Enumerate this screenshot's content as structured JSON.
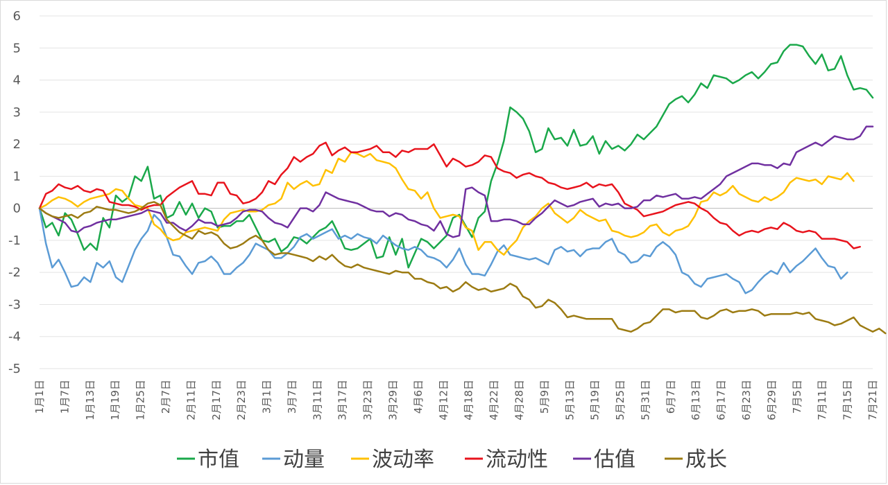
{
  "chart_data": {
    "type": "line",
    "title": "",
    "xlabel": "",
    "ylabel": "",
    "ylim": [
      -5,
      6
    ],
    "yticks": [
      "6",
      "5",
      "4",
      "3",
      "2",
      "1",
      "0",
      "-1",
      "-2",
      "-3",
      "-4",
      "-5"
    ],
    "grid": "horizontal",
    "legend_position": "bottom",
    "x_tick_labels": [
      "1月1日",
      "1月7日",
      "1月13日",
      "1月19日",
      "1月25日",
      "2月7日",
      "2月11日",
      "2月17日",
      "2月23日",
      "3月1日",
      "3月7日",
      "3月11日",
      "3月17日",
      "3月23日",
      "3月29日",
      "4月6日",
      "4月12日",
      "4月18日",
      "4月22日",
      "4月28日",
      "5月9日",
      "5月13日",
      "5月19日",
      "5月25日",
      "5月31日",
      "6月7日",
      "6月13日",
      "6月17日",
      "6月23日",
      "6月29日",
      "7月5日",
      "7月11日",
      "7月15日",
      "7月21日"
    ],
    "series": [
      {
        "name": "市值",
        "color": "#1aa84a",
        "values": [
          0,
          -0.6,
          -0.45,
          -0.85,
          -0.15,
          -0.35,
          -0.8,
          -1.3,
          -1.1,
          -1.3,
          -0.3,
          -0.6,
          0.4,
          0.2,
          0.35,
          1.0,
          0.85,
          1.3,
          0.3,
          0.4,
          -0.3,
          -0.2,
          0.2,
          -0.2,
          0.15,
          -0.3,
          0,
          -0.1,
          -0.6,
          -0.55,
          -0.55,
          -0.4,
          -0.4,
          -0.2,
          -0.6,
          -1.0,
          -1.05,
          -0.95,
          -1.35,
          -1.2,
          -0.9,
          -0.95,
          -1.1,
          -0.9,
          -0.7,
          -0.6,
          -0.4,
          -0.8,
          -1.25,
          -1.3,
          -1.25,
          -1.1,
          -0.95,
          -1.55,
          -1.5,
          -0.9,
          -1.45,
          -0.95,
          -1.85,
          -1.4,
          -0.95,
          -1.05,
          -1.25,
          -1.05,
          -0.85,
          -0.3,
          -0.2,
          -0.55,
          -0.9,
          -0.3,
          -0.1,
          0.85,
          1.4,
          2.1,
          3.15,
          3.0,
          2.8,
          2.4,
          1.75,
          1.85,
          2.5,
          2.15,
          2.2,
          1.95,
          2.45,
          1.95,
          2.0,
          2.25,
          1.7,
          2.1,
          1.85,
          1.95,
          1.8,
          2.0,
          2.3,
          2.15,
          2.35,
          2.55,
          2.9,
          3.25,
          3.4,
          3.5,
          3.3,
          3.55,
          3.9,
          3.75,
          4.15,
          4.1,
          4.05,
          3.9,
          4.0,
          4.15,
          4.25,
          4.05,
          4.25,
          4.5,
          4.55,
          4.9,
          5.1,
          5.1,
          5.05,
          4.75,
          4.5,
          4.8,
          4.3,
          4.35,
          4.75,
          4.15,
          3.7,
          3.75,
          3.7,
          3.45
        ]
      },
      {
        "name": "动量",
        "color": "#5b9bd5",
        "values": [
          0,
          -1.1,
          -1.85,
          -1.6,
          -2.0,
          -2.45,
          -2.4,
          -2.15,
          -2.3,
          -1.7,
          -1.85,
          -1.65,
          -2.15,
          -2.3,
          -1.8,
          -1.3,
          -0.95,
          -0.7,
          -0.2,
          -0.4,
          -0.9,
          -1.45,
          -1.5,
          -1.8,
          -2.05,
          -1.7,
          -1.65,
          -1.5,
          -1.7,
          -2.05,
          -2.05,
          -1.85,
          -1.7,
          -1.45,
          -1.1,
          -1.2,
          -1.3,
          -1.55,
          -1.55,
          -1.4,
          -1.2,
          -0.9,
          -0.8,
          -0.95,
          -0.85,
          -0.75,
          -0.65,
          -0.95,
          -0.85,
          -0.95,
          -0.8,
          -0.9,
          -0.95,
          -1.1,
          -0.85,
          -1.0,
          -1.15,
          -1.25,
          -1.3,
          -1.2,
          -1.3,
          -1.5,
          -1.55,
          -1.65,
          -1.85,
          -1.6,
          -1.25,
          -1.75,
          -2.05,
          -2.05,
          -2.1,
          -1.75,
          -1.35,
          -1.15,
          -1.45,
          -1.5,
          -1.55,
          -1.6,
          -1.55,
          -1.65,
          -1.75,
          -1.3,
          -1.2,
          -1.35,
          -1.3,
          -1.5,
          -1.3,
          -1.25,
          -1.25,
          -1.05,
          -0.95,
          -1.35,
          -1.45,
          -1.7,
          -1.65,
          -1.45,
          -1.5,
          -1.2,
          -1.05,
          -1.2,
          -1.45,
          -2.0,
          -2.1,
          -2.35,
          -2.45,
          -2.2,
          -2.15,
          -2.1,
          -2.05,
          -2.2,
          -2.3,
          -2.65,
          -2.55,
          -2.3,
          -2.1,
          -1.95,
          -2.05,
          -1.7,
          -2.0,
          -1.8,
          -1.65,
          -1.45,
          -1.25,
          -1.55,
          -1.8,
          -1.85,
          -2.2,
          -2.0
        ]
      },
      {
        "name": "波动率",
        "color": "#ffc000",
        "values": [
          0,
          0.1,
          0.25,
          0.35,
          0.3,
          0.2,
          0.05,
          0.2,
          0.3,
          0.35,
          0.4,
          0.45,
          0.6,
          0.55,
          0.3,
          0.1,
          0.05,
          0,
          -0.5,
          -0.65,
          -0.9,
          -1.0,
          -0.95,
          -0.75,
          -0.7,
          -0.65,
          -0.6,
          -0.65,
          -0.7,
          -0.35,
          -0.15,
          -0.1,
          -0.05,
          -0.1,
          -0.1,
          -0.05,
          0.1,
          0.15,
          0.3,
          0.8,
          0.6,
          0.75,
          0.85,
          0.7,
          0.75,
          1.2,
          1.1,
          1.55,
          1.45,
          1.75,
          1.7,
          1.6,
          1.7,
          1.5,
          1.45,
          1.4,
          1.25,
          0.9,
          0.6,
          0.55,
          0.3,
          0.5,
          0,
          -0.3,
          -0.25,
          -0.2,
          -0.25,
          -0.6,
          -0.7,
          -1.3,
          -1.05,
          -1.05,
          -1.3,
          -1.45,
          -1.2,
          -1.0,
          -0.6,
          -0.4,
          -0.25,
          0,
          0.15,
          -0.15,
          -0.3,
          -0.45,
          -0.3,
          -0.05,
          -0.2,
          -0.3,
          -0.4,
          -0.35,
          -0.7,
          -0.75,
          -0.85,
          -0.9,
          -0.85,
          -0.75,
          -0.55,
          -0.5,
          -0.75,
          -0.85,
          -0.7,
          -0.65,
          -0.55,
          -0.25,
          0.2,
          0.25,
          0.5,
          0.4,
          0.5,
          0.7,
          0.45,
          0.35,
          0.25,
          0.2,
          0.35,
          0.25,
          0.35,
          0.5,
          0.8,
          0.95,
          0.9,
          0.85,
          0.9,
          0.75,
          1.0,
          0.95,
          0.9,
          1.1,
          0.85
        ]
      },
      {
        "name": "流动性",
        "color": "#e8131c",
        "values": [
          0,
          0.45,
          0.55,
          0.75,
          0.65,
          0.6,
          0.7,
          0.55,
          0.5,
          0.6,
          0.55,
          0.2,
          0.15,
          0.1,
          0.1,
          0.05,
          -0.05,
          0.05,
          0.1,
          0.1,
          0.35,
          0.5,
          0.65,
          0.75,
          0.85,
          0.45,
          0.45,
          0.4,
          0.8,
          0.8,
          0.45,
          0.4,
          0.15,
          0.2,
          0.3,
          0.5,
          0.85,
          0.75,
          1.05,
          1.25,
          1.6,
          1.45,
          1.6,
          1.7,
          1.95,
          2.05,
          1.65,
          1.8,
          1.9,
          1.75,
          1.75,
          1.8,
          1.85,
          1.95,
          1.75,
          1.75,
          1.6,
          1.8,
          1.75,
          1.85,
          1.85,
          1.85,
          2.0,
          1.65,
          1.3,
          1.55,
          1.45,
          1.3,
          1.35,
          1.45,
          1.65,
          1.6,
          1.25,
          1.15,
          1.1,
          0.95,
          1.05,
          1.1,
          1.0,
          0.95,
          0.8,
          0.75,
          0.65,
          0.6,
          0.65,
          0.7,
          0.8,
          0.65,
          0.75,
          0.7,
          0.75,
          0.5,
          0.15,
          0.05,
          -0.05,
          -0.25,
          -0.2,
          -0.15,
          -0.1,
          0,
          0.1,
          0.15,
          0.2,
          0.15,
          0,
          -0.1,
          -0.3,
          -0.45,
          -0.5,
          -0.7,
          -0.85,
          -0.75,
          -0.7,
          -0.75,
          -0.65,
          -0.6,
          -0.65,
          -0.45,
          -0.55,
          -0.7,
          -0.75,
          -0.7,
          -0.75,
          -0.95,
          -0.95,
          -0.95,
          -1.0,
          -1.05,
          -1.25,
          -1.2
        ]
      },
      {
        "name": "估值",
        "color": "#7030a0",
        "values": [
          0,
          -0.15,
          -0.25,
          -0.35,
          -0.45,
          -0.7,
          -0.75,
          -0.6,
          -0.55,
          -0.45,
          -0.4,
          -0.35,
          -0.35,
          -0.3,
          -0.25,
          -0.2,
          -0.15,
          -0.05,
          -0.1,
          -0.15,
          -0.45,
          -0.45,
          -0.6,
          -0.7,
          -0.55,
          -0.35,
          -0.45,
          -0.45,
          -0.55,
          -0.5,
          -0.45,
          -0.3,
          -0.1,
          -0.05,
          -0.05,
          -0.1,
          -0.3,
          -0.45,
          -0.5,
          -0.6,
          -0.3,
          0,
          0,
          -0.1,
          0.1,
          0.5,
          0.4,
          0.3,
          0.25,
          0.2,
          0.15,
          0.05,
          -0.05,
          -0.1,
          -0.1,
          -0.25,
          -0.15,
          -0.2,
          -0.35,
          -0.4,
          -0.5,
          -0.55,
          -0.7,
          -0.4,
          -0.8,
          -0.9,
          -0.85,
          0.6,
          0.65,
          0.5,
          0.4,
          -0.4,
          -0.4,
          -0.35,
          -0.35,
          -0.4,
          -0.5,
          -0.5,
          -0.3,
          -0.15,
          0.05,
          0.25,
          0.15,
          0.05,
          0.1,
          0.2,
          0.25,
          0.3,
          0.05,
          0.15,
          0.1,
          0.15,
          0,
          0.0,
          0.05,
          0.25,
          0.25,
          0.4,
          0.35,
          0.4,
          0.45,
          0.3,
          0.3,
          0.35,
          0.3,
          0.45,
          0.6,
          0.75,
          1.0,
          1.1,
          1.2,
          1.3,
          1.4,
          1.4,
          1.35,
          1.35,
          1.25,
          1.4,
          1.35,
          1.75,
          1.85,
          1.95,
          2.05,
          1.95,
          2.1,
          2.25,
          2.2,
          2.15,
          2.15,
          2.25,
          2.55,
          2.55
        ]
      },
      {
        "name": "成长",
        "color": "#9c7b12",
        "values": [
          0,
          -0.15,
          -0.25,
          -0.3,
          -0.25,
          -0.2,
          -0.3,
          -0.15,
          -0.1,
          0.05,
          0,
          -0.05,
          -0.05,
          -0.1,
          -0.15,
          -0.1,
          0,
          0.15,
          0.2,
          0.1,
          -0.35,
          -0.55,
          -0.75,
          -0.85,
          -0.95,
          -0.7,
          -0.8,
          -0.75,
          -0.85,
          -1.1,
          -1.25,
          -1.2,
          -1.1,
          -0.95,
          -0.85,
          -1.0,
          -1.3,
          -1.45,
          -1.4,
          -1.4,
          -1.45,
          -1.5,
          -1.55,
          -1.65,
          -1.5,
          -1.6,
          -1.45,
          -1.65,
          -1.8,
          -1.85,
          -1.75,
          -1.85,
          -1.9,
          -1.95,
          -2.0,
          -2.05,
          -1.95,
          -2.0,
          -2.0,
          -2.2,
          -2.2,
          -2.3,
          -2.35,
          -2.5,
          -2.45,
          -2.6,
          -2.5,
          -2.3,
          -2.45,
          -2.55,
          -2.5,
          -2.6,
          -2.55,
          -2.5,
          -2.35,
          -2.45,
          -2.75,
          -2.85,
          -3.1,
          -3.05,
          -2.85,
          -2.95,
          -3.15,
          -3.4,
          -3.35,
          -3.4,
          -3.45,
          -3.45,
          -3.45,
          -3.45,
          -3.45,
          -3.75,
          -3.8,
          -3.85,
          -3.75,
          -3.6,
          -3.55,
          -3.35,
          -3.15,
          -3.15,
          -3.25,
          -3.2,
          -3.2,
          -3.2,
          -3.4,
          -3.45,
          -3.35,
          -3.2,
          -3.15,
          -3.25,
          -3.2,
          -3.2,
          -3.15,
          -3.2,
          -3.35,
          -3.3,
          -3.3,
          -3.3,
          -3.3,
          -3.25,
          -3.3,
          -3.25,
          -3.45,
          -3.5,
          -3.55,
          -3.65,
          -3.6,
          -3.5,
          -3.4,
          -3.65,
          -3.75,
          -3.85,
          -3.75,
          -3.9
        ]
      }
    ]
  }
}
